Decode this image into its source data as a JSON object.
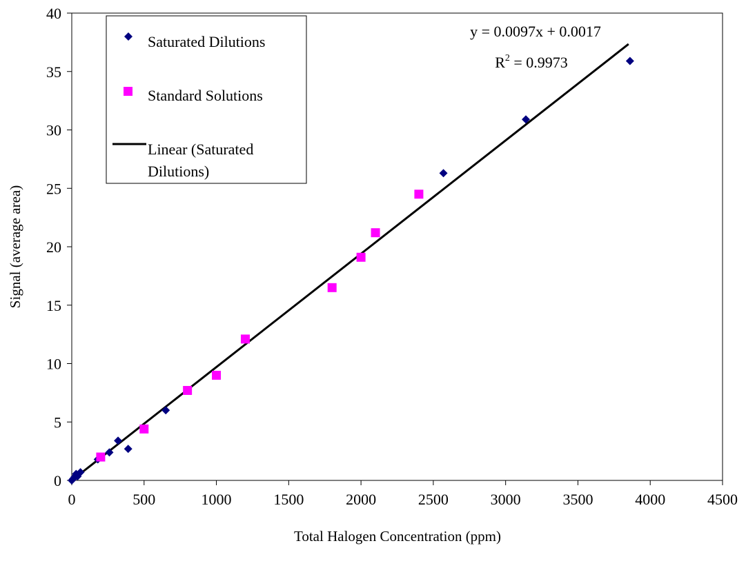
{
  "chart_data": {
    "type": "scatter",
    "xlabel": "Total Halogen Concentration (ppm)",
    "ylabel": "Signal (average area)",
    "xlim": [
      0,
      4500
    ],
    "ylim": [
      0,
      40
    ],
    "x_ticks": [
      "0",
      "500",
      "1000",
      "1500",
      "2000",
      "2500",
      "3000",
      "3500",
      "4000",
      "4500"
    ],
    "y_ticks": [
      "0",
      "5",
      "10",
      "15",
      "20",
      "25",
      "30",
      "35",
      "40"
    ],
    "grid": false,
    "legend_position": "top-left",
    "series": [
      {
        "name": "Saturated Dilutions",
        "marker": "diamond",
        "color": "#000080",
        "points": [
          {
            "x": 0,
            "y": 0.0
          },
          {
            "x": 10,
            "y": 0.15
          },
          {
            "x": 20,
            "y": 0.3
          },
          {
            "x": 30,
            "y": 0.55
          },
          {
            "x": 40,
            "y": 0.35
          },
          {
            "x": 60,
            "y": 0.7
          },
          {
            "x": 180,
            "y": 1.8
          },
          {
            "x": 260,
            "y": 2.4
          },
          {
            "x": 320,
            "y": 3.4
          },
          {
            "x": 390,
            "y": 2.7
          },
          {
            "x": 650,
            "y": 6.0
          },
          {
            "x": 2570,
            "y": 26.3
          },
          {
            "x": 3140,
            "y": 30.9
          },
          {
            "x": 3860,
            "y": 35.9
          }
        ]
      },
      {
        "name": "Standard Solutions",
        "marker": "square",
        "color": "#ff00ff",
        "points": [
          {
            "x": 200,
            "y": 2.0
          },
          {
            "x": 500,
            "y": 4.4
          },
          {
            "x": 800,
            "y": 7.7
          },
          {
            "x": 1000,
            "y": 9.0
          },
          {
            "x": 1200,
            "y": 12.1
          },
          {
            "x": 1800,
            "y": 16.5
          },
          {
            "x": 2000,
            "y": 19.1
          },
          {
            "x": 2100,
            "y": 21.2
          },
          {
            "x": 2400,
            "y": 24.5
          }
        ]
      }
    ],
    "trendline": {
      "name_line1": "Linear (Saturated",
      "name_line2": "Dilutions)",
      "color": "#000000",
      "slope": 0.0097,
      "intercept": 0.0017,
      "x_range": [
        0,
        3850
      ],
      "equation": "y = 0.0097x + 0.0017",
      "r2_prefix": "R",
      "r2_sup": "2",
      "r2_suffix": " = 0.9973"
    },
    "legend": {
      "item1": "Saturated Dilutions",
      "item2": "Standard Solutions",
      "item3_line1": "Linear (Saturated",
      "item3_line2": "Dilutions)"
    }
  }
}
